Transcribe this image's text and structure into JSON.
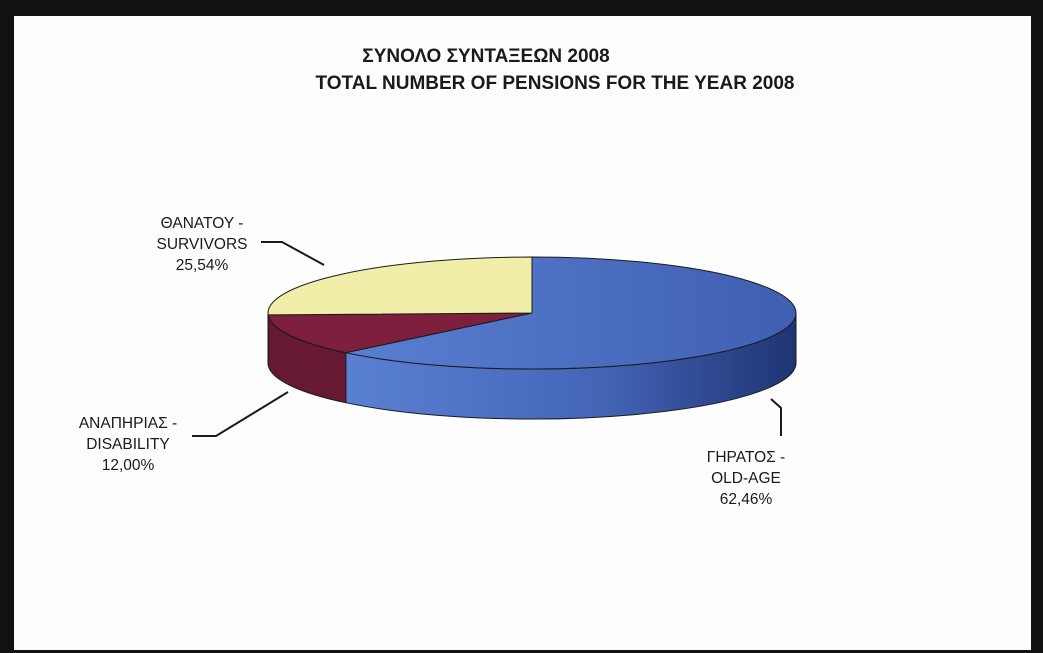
{
  "chart_data": {
    "type": "pie",
    "title": "ΣΥΝΟΛΟ ΣΥΝΤΑΞΕΩΝ  2008",
    "subtitle": "TOTAL NUMBER OF PENSIONS FOR THE YEAR 2008",
    "slices": [
      {
        "label_lines": [
          "ΓΗΡΑΤΟΣ -",
          "OLD-AGE"
        ],
        "value": 62.46,
        "value_label": "62,46%",
        "color": "#4f74c8"
      },
      {
        "label_lines": [
          "ΑΝΑΠΗΡΙΑΣ -",
          "DISABILITY"
        ],
        "value": 12.0,
        "value_label": "12,00%",
        "color": "#7e1f3e"
      },
      {
        "label_lines": [
          "ΘΑΝΑΤΟΥ -",
          "SURVIVORS"
        ],
        "value": 25.54,
        "value_label": "25,54%",
        "color": "#f1eeaa"
      }
    ],
    "three_d": true,
    "legend": "none"
  }
}
